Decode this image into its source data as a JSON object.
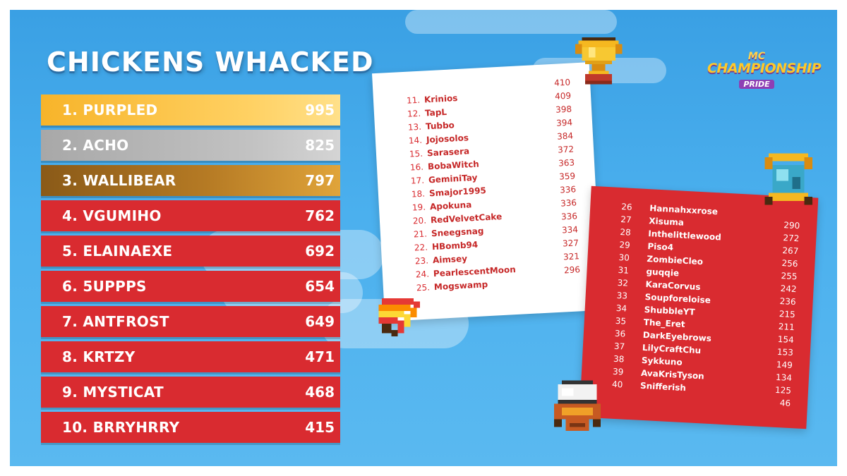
{
  "title": "CHICKENS WHACKED",
  "colors": {
    "background": "#4bb0ee",
    "row_red": "#d92b30",
    "gold": "#f7b42a",
    "silver": "#b0b0b0",
    "bronze": "#a46a1e"
  },
  "top_ten": [
    {
      "rank": "1.",
      "name": "PURPLED",
      "score": "995"
    },
    {
      "rank": "2.",
      "name": "ACHO",
      "score": "825"
    },
    {
      "rank": "3.",
      "name": "WALLIBEAR",
      "score": "797"
    },
    {
      "rank": "4.",
      "name": "VGUMIHO",
      "score": "762"
    },
    {
      "rank": "5.",
      "name": "ELAINAEXE",
      "score": "692"
    },
    {
      "rank": "6.",
      "name": "5UPPPS",
      "score": "654"
    },
    {
      "rank": "7.",
      "name": "ANTFROST",
      "score": "649"
    },
    {
      "rank": "8.",
      "name": "KRTZY",
      "score": "471"
    },
    {
      "rank": "9.",
      "name": "MYSTICAT",
      "score": "468"
    },
    {
      "rank": "10.",
      "name": "BRRYHRRY",
      "score": "415"
    }
  ],
  "white_list": [
    {
      "rank": "11.",
      "name": "Krinios",
      "score": "410"
    },
    {
      "rank": "12.",
      "name": "TapL",
      "score": "409"
    },
    {
      "rank": "13.",
      "name": "Tubbo",
      "score": "398"
    },
    {
      "rank": "14.",
      "name": "Jojosolos",
      "score": "394"
    },
    {
      "rank": "15.",
      "name": "Sarasera",
      "score": "384"
    },
    {
      "rank": "16.",
      "name": "BobaWitch",
      "score": "372"
    },
    {
      "rank": "17.",
      "name": "GeminiTay",
      "score": "363"
    },
    {
      "rank": "18.",
      "name": "Smajor1995",
      "score": "359"
    },
    {
      "rank": "19.",
      "name": "Apokuna",
      "score": "336"
    },
    {
      "rank": "20.",
      "name": "RedVelvetCake",
      "score": "336"
    },
    {
      "rank": "21.",
      "name": "Sneegsnag",
      "score": "336"
    },
    {
      "rank": "22.",
      "name": "HBomb94",
      "score": "334"
    },
    {
      "rank": "23.",
      "name": "Aimsey",
      "score": "327"
    },
    {
      "rank": "24.",
      "name": "PearlescentMoon",
      "score": "321"
    },
    {
      "rank": "25.",
      "name": "Mogswamp",
      "score": "296"
    }
  ],
  "red_list": [
    {
      "rank": "26",
      "name": "Hannahxxrose",
      "score": "290"
    },
    {
      "rank": "27",
      "name": "Xisuma",
      "score": "272"
    },
    {
      "rank": "28",
      "name": "Inthelittlewood",
      "score": "267"
    },
    {
      "rank": "29",
      "name": "Piso4",
      "score": "256"
    },
    {
      "rank": "30",
      "name": "ZombieCleo",
      "score": "255"
    },
    {
      "rank": "31",
      "name": "guqqie",
      "score": "242"
    },
    {
      "rank": "32",
      "name": "KaraCorvus",
      "score": "236"
    },
    {
      "rank": "33",
      "name": "Soupforeloise",
      "score": "215"
    },
    {
      "rank": "34",
      "name": "ShubbleYT",
      "score": "211"
    },
    {
      "rank": "35",
      "name": "The_Eret",
      "score": "154"
    },
    {
      "rank": "36",
      "name": "DarkEyebrows",
      "score": "153"
    },
    {
      "rank": "37",
      "name": "LilyCraftChu",
      "score": "149"
    },
    {
      "rank": "38",
      "name": "Sykkuno",
      "score": "134"
    },
    {
      "rank": "39",
      "name": "AvaKrisTyson",
      "score": "125"
    },
    {
      "rank": "40",
      "name": "Snifferish",
      "score": "46"
    }
  ],
  "logo": {
    "line1": "MC",
    "line2": "CHAMPIONSHIP",
    "line3": "PRIDE"
  },
  "icons": [
    "trophy-icon",
    "rainbow-icon",
    "crown-gem-icon",
    "chicken-helmet-icon"
  ]
}
